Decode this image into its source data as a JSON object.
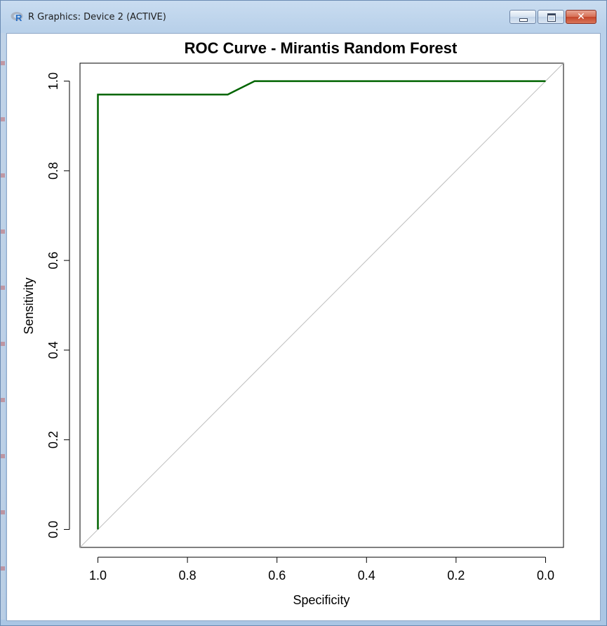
{
  "window": {
    "title": "R Graphics: Device 2 (ACTIVE)",
    "icon": "r-logo-icon",
    "buttons": {
      "minimize": "minimize-icon",
      "maximize": "maximize-icon",
      "close": "close-icon"
    },
    "close_glyph": "✕"
  },
  "colors": {
    "curve": "#006400",
    "diagonal": "#bebebe",
    "axis": "#000000"
  },
  "chart_data": {
    "type": "line",
    "title": "ROC Curve - Mirantis Random Forest",
    "xlabel": "Specificity",
    "ylabel": "Sensitivity",
    "xlim": [
      1.0,
      0.0
    ],
    "ylim": [
      0.0,
      1.0
    ],
    "x_reversed": true,
    "grid": false,
    "x_ticks": [
      "1.0",
      "0.8",
      "0.6",
      "0.4",
      "0.2",
      "0.0"
    ],
    "y_ticks": [
      "0.0",
      "0.2",
      "0.4",
      "0.6",
      "0.8",
      "1.0"
    ],
    "series": [
      {
        "specificity": [
          1.0,
          1.0,
          0.71,
          0.68,
          0.65,
          0.0
        ],
        "sensitivity": [
          0.0,
          0.97,
          0.97,
          0.985,
          1.0,
          1.0
        ]
      }
    ],
    "reference_line": {
      "from": [
        1.0,
        0.0
      ],
      "to": [
        0.0,
        1.0
      ]
    }
  }
}
